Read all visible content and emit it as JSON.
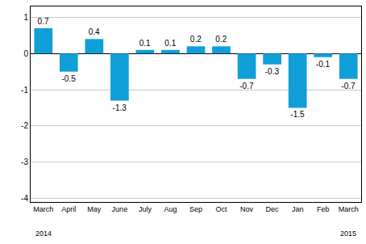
{
  "chart_data": {
    "type": "bar",
    "categories": [
      "March",
      "April",
      "May",
      "June",
      "July",
      "Aug",
      "Sep",
      "Oct",
      "Nov",
      "Dec",
      "Jan",
      "Feb",
      "March"
    ],
    "values": [
      0.7,
      -0.5,
      0.4,
      -1.3,
      0.1,
      0.1,
      0.2,
      0.2,
      -0.7,
      -0.3,
      -1.5,
      -0.1,
      -0.7
    ],
    "color": "#109fd8",
    "ylim": [
      -4.1,
      1.3
    ],
    "yticks": [
      -4,
      -3,
      -2,
      -1,
      0,
      1
    ],
    "grid": true,
    "data_labels": true,
    "annotations": [
      {
        "text": "2014",
        "x": 0
      },
      {
        "text": "2015",
        "x": 12
      }
    ]
  }
}
